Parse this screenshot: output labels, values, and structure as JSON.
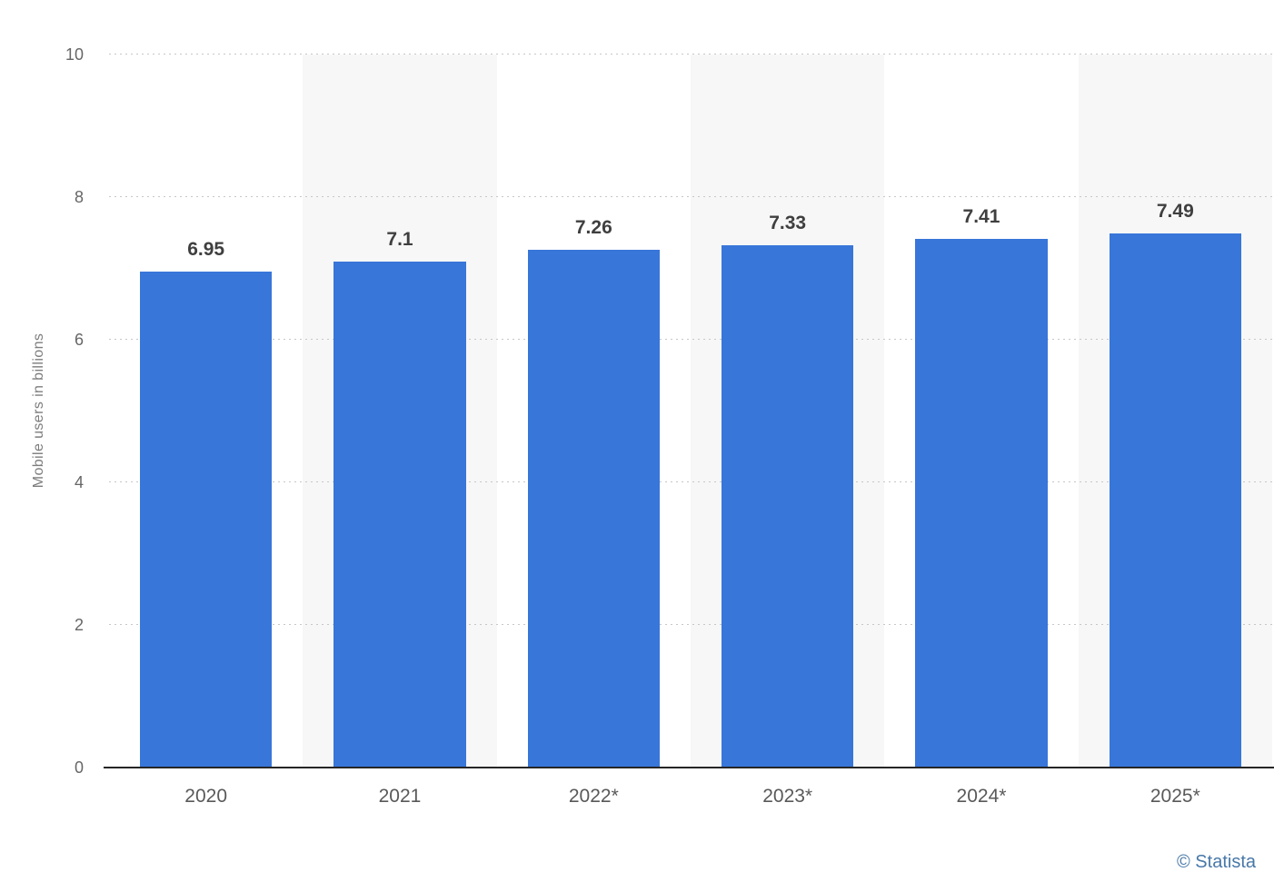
{
  "chart_data": {
    "type": "bar",
    "categories": [
      "2020",
      "2021",
      "2022*",
      "2023*",
      "2024*",
      "2025*"
    ],
    "values": [
      6.95,
      7.1,
      7.26,
      7.33,
      7.41,
      7.49
    ],
    "value_labels": [
      "6.95",
      "7.1",
      "7.26",
      "7.33",
      "7.41",
      "7.49"
    ],
    "title": "",
    "xlabel": "",
    "ylabel": "Mobile users in billions",
    "ylim": [
      0,
      10
    ],
    "yticks": [
      0,
      2,
      4,
      6,
      8,
      10
    ],
    "grid": "horizontal-dotted",
    "legend": "none",
    "bar_color": "#3876d9",
    "band_color": "#f7f7f7",
    "axis_line_color": "#262626",
    "gridline_color": "#c7c7c7",
    "tick_label_color": "#666666",
    "value_label_color": "#3f3f3f"
  },
  "credit": "© Statista"
}
